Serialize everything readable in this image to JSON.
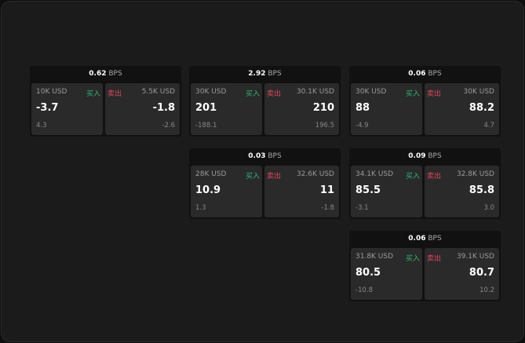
{
  "labels": {
    "unit": "BPS",
    "buy": "买入",
    "sell": "卖出"
  },
  "colors": {
    "buy": "#2eb872",
    "sell": "#e2455f"
  },
  "cards": [
    {
      "spread": "0.62",
      "bid_size": "10K USD",
      "bid": "-3.7",
      "bid_change": "4.3",
      "ask_size": "5.5K USD",
      "ask": "-1.8",
      "ask_change": "-2.6"
    },
    {
      "spread": "2.92",
      "bid_size": "30K USD",
      "bid": "201",
      "bid_change": "-188.1",
      "ask_size": "30.1K USD",
      "ask": "210",
      "ask_change": "196.5"
    },
    {
      "spread": "0.06",
      "bid_size": "30K USD",
      "bid": "88",
      "bid_change": "-4.9",
      "ask_size": "30K USD",
      "ask": "88.2",
      "ask_change": "4.7"
    },
    {
      "spread": "0.03",
      "bid_size": "28K USD",
      "bid": "10.9",
      "bid_change": "1.3",
      "ask_size": "32.6K USD",
      "ask": "11",
      "ask_change": "-1.8"
    },
    {
      "spread": "0.09",
      "bid_size": "34.1K USD",
      "bid": "85.5",
      "bid_change": "-3.1",
      "ask_size": "32.8K USD",
      "ask": "85.8",
      "ask_change": "3.0"
    },
    {
      "spread": "0.06",
      "bid_size": "31.8K USD",
      "bid": "80.5",
      "bid_change": "-10.8",
      "ask_size": "39.1K USD",
      "ask": "80.7",
      "ask_change": "10.2"
    }
  ]
}
